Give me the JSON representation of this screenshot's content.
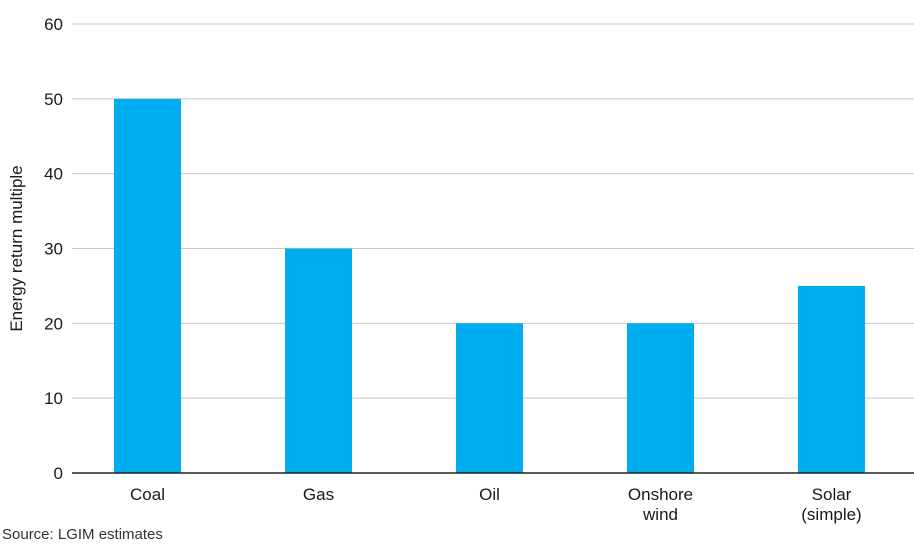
{
  "chart_data": {
    "type": "bar",
    "categories": [
      "Coal",
      "Gas",
      "Oil",
      "Onshore wind",
      "Solar (simple)"
    ],
    "category_lines": [
      [
        "Coal"
      ],
      [
        "Gas"
      ],
      [
        "Oil"
      ],
      [
        "Onshore",
        "wind"
      ],
      [
        "Solar",
        "(simple)"
      ]
    ],
    "values": [
      50,
      30,
      20,
      20,
      25
    ],
    "ylabel": "Energy return multiple",
    "xlabel": "",
    "ylim": [
      0,
      60
    ],
    "yticks": [
      0,
      10,
      20,
      30,
      40,
      50,
      60
    ],
    "grid": true,
    "legend": "none",
    "bar_color": "#00aeef",
    "grid_color": "#c8c8c8",
    "axis_color": "#222222"
  },
  "source": "Source: LGIM estimates"
}
